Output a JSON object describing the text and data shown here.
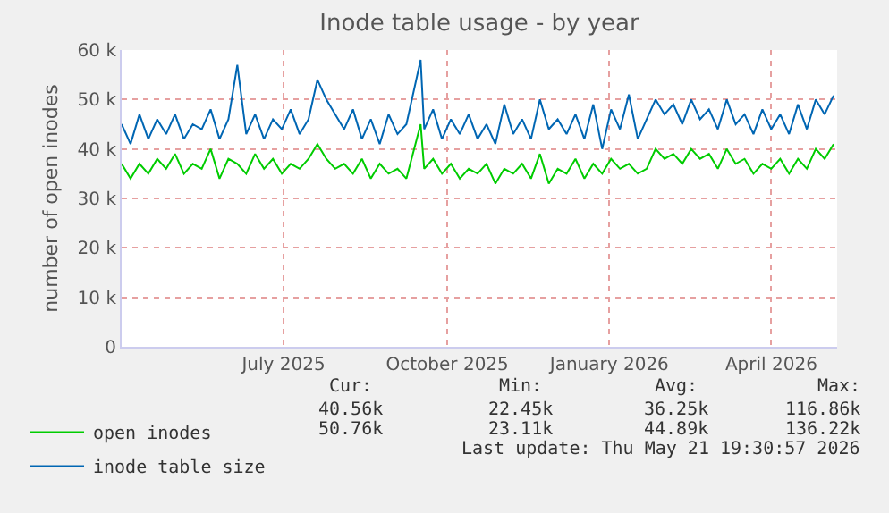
{
  "chart_data": {
    "type": "line",
    "title": "Inode table usage - by year",
    "ylabel": "number of open inodes",
    "x": [
      "2025-04-16",
      "2025-04-21",
      "2025-04-26",
      "2025-05-01",
      "2025-05-06",
      "2025-05-11",
      "2025-05-16",
      "2025-05-21",
      "2025-05-26",
      "2025-05-31",
      "2025-06-05",
      "2025-06-10",
      "2025-06-15",
      "2025-06-20",
      "2025-06-25",
      "2025-06-30",
      "2025-07-05",
      "2025-07-10",
      "2025-07-15",
      "2025-07-20",
      "2025-07-25",
      "2025-07-30",
      "2025-08-04",
      "2025-08-09",
      "2025-08-14",
      "2025-08-19",
      "2025-08-24",
      "2025-08-29",
      "2025-09-03",
      "2025-09-08",
      "2025-09-13",
      "2025-09-18",
      "2025-09-23",
      "2025-10-01",
      "2025-10-03",
      "2025-10-08",
      "2025-10-13",
      "2025-10-18",
      "2025-10-23",
      "2025-10-28",
      "2025-11-02",
      "2025-11-07",
      "2025-11-12",
      "2025-11-17",
      "2025-11-22",
      "2025-11-27",
      "2025-12-02",
      "2025-12-07",
      "2025-12-12",
      "2025-12-17",
      "2025-12-22",
      "2025-12-27",
      "2026-01-01",
      "2026-01-06",
      "2026-01-11",
      "2026-01-16",
      "2026-01-21",
      "2026-01-26",
      "2026-01-31",
      "2026-02-05",
      "2026-02-10",
      "2026-02-15",
      "2026-02-20",
      "2026-02-25",
      "2026-03-02",
      "2026-03-07",
      "2026-03-12",
      "2026-03-17",
      "2026-03-22",
      "2026-03-27",
      "2026-04-01",
      "2026-04-06",
      "2026-04-11",
      "2026-04-16",
      "2026-04-21",
      "2026-04-26",
      "2026-05-01",
      "2026-05-06",
      "2026-05-11",
      "2026-05-16",
      "2026-05-21"
    ],
    "series": [
      {
        "name": "open inodes",
        "color": "#00cc00",
        "values": [
          37000,
          34000,
          37000,
          35000,
          38000,
          36000,
          39000,
          35000,
          37000,
          36000,
          40000,
          34000,
          38000,
          37000,
          35000,
          39000,
          36000,
          38000,
          35000,
          37000,
          36000,
          38000,
          41000,
          38000,
          36000,
          37000,
          35000,
          38000,
          34000,
          37000,
          35000,
          36000,
          34000,
          45000,
          36000,
          38000,
          35000,
          37000,
          34000,
          36000,
          35000,
          37000,
          33000,
          36000,
          35000,
          37000,
          34000,
          39000,
          33000,
          36000,
          35000,
          38000,
          34000,
          37000,
          35000,
          38000,
          36000,
          37000,
          35000,
          36000,
          40000,
          38000,
          39000,
          37000,
          40000,
          38000,
          39000,
          36000,
          40000,
          37000,
          38000,
          35000,
          37000,
          36000,
          38000,
          35000,
          38000,
          36000,
          40000,
          38000,
          41000
        ]
      },
      {
        "name": "inode table size",
        "color": "#0066b3",
        "values": [
          45000,
          41000,
          47000,
          42000,
          46000,
          43000,
          47000,
          42000,
          45000,
          44000,
          48000,
          42000,
          46000,
          57000,
          43000,
          47000,
          42000,
          46000,
          44000,
          48000,
          43000,
          46000,
          54000,
          50000,
          47000,
          44000,
          48000,
          42000,
          46000,
          41000,
          47000,
          43000,
          45000,
          58000,
          44000,
          48000,
          42000,
          46000,
          43000,
          47000,
          42000,
          45000,
          41000,
          49000,
          43000,
          46000,
          42000,
          50000,
          44000,
          46000,
          43000,
          47000,
          42000,
          49000,
          40000,
          48000,
          44000,
          51000,
          42000,
          46000,
          50000,
          47000,
          49000,
          45000,
          50000,
          46000,
          48000,
          44000,
          50000,
          45000,
          47000,
          43000,
          48000,
          44000,
          47000,
          43000,
          49000,
          44000,
          50000,
          47000,
          50800
        ]
      }
    ],
    "xlim": [
      "2025-04-16",
      "2026-05-23"
    ],
    "xticks": [
      {
        "value": "2025-07-16",
        "label": "July 2025"
      },
      {
        "value": "2025-10-16",
        "label": "October 2025"
      },
      {
        "value": "2026-01-15",
        "label": "January 2026"
      },
      {
        "value": "2026-04-16",
        "label": "April 2026"
      }
    ],
    "ylim": [
      0,
      60000
    ],
    "yticks": [
      0,
      {
        "value": 10000,
        "label": "10 k"
      },
      {
        "value": 20000,
        "label": "20 k"
      },
      {
        "value": 30000,
        "label": "30 k"
      },
      {
        "value": 40000,
        "label": "40 k"
      },
      {
        "value": 50000,
        "label": "50 k"
      },
      {
        "value": 60000,
        "label": "60 k"
      }
    ],
    "grid": true,
    "legend": "bottom left",
    "annotations": [
      "Cur:",
      "Min:",
      "Avg:",
      "Max:",
      "40.56k",
      "22.45k",
      "36.25k",
      "116.86k",
      "50.76k",
      "23.11k",
      "44.89k",
      "136.22k",
      "Last update: Thu May 21 19:30:57 2026"
    ]
  }
}
